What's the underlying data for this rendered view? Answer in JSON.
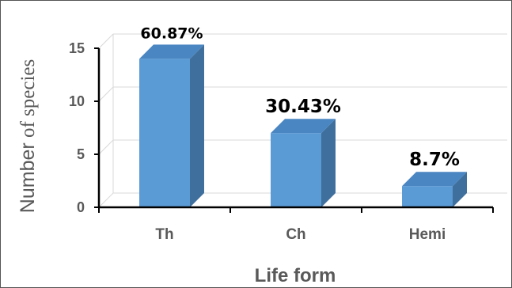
{
  "chart_data": {
    "type": "bar",
    "categories": [
      "Th",
      "Ch",
      "Hemi"
    ],
    "values": [
      14,
      7,
      2
    ],
    "data_labels": [
      "60.87%",
      "30.43%",
      "8.7%"
    ],
    "xlabel": "Life form",
    "ylabel_main": "Number",
    "ylabel_tail": "of species",
    "ylim": [
      0,
      15
    ],
    "yticks": [
      0,
      5,
      10,
      15
    ],
    "grid": true,
    "style": "3d-column",
    "colors": {
      "front": "#5b9bd5",
      "side": "#3f6f9c",
      "top": "#4a86c2",
      "grid": "#d9d9d9",
      "axis": "#000000",
      "text": "#595959"
    }
  }
}
